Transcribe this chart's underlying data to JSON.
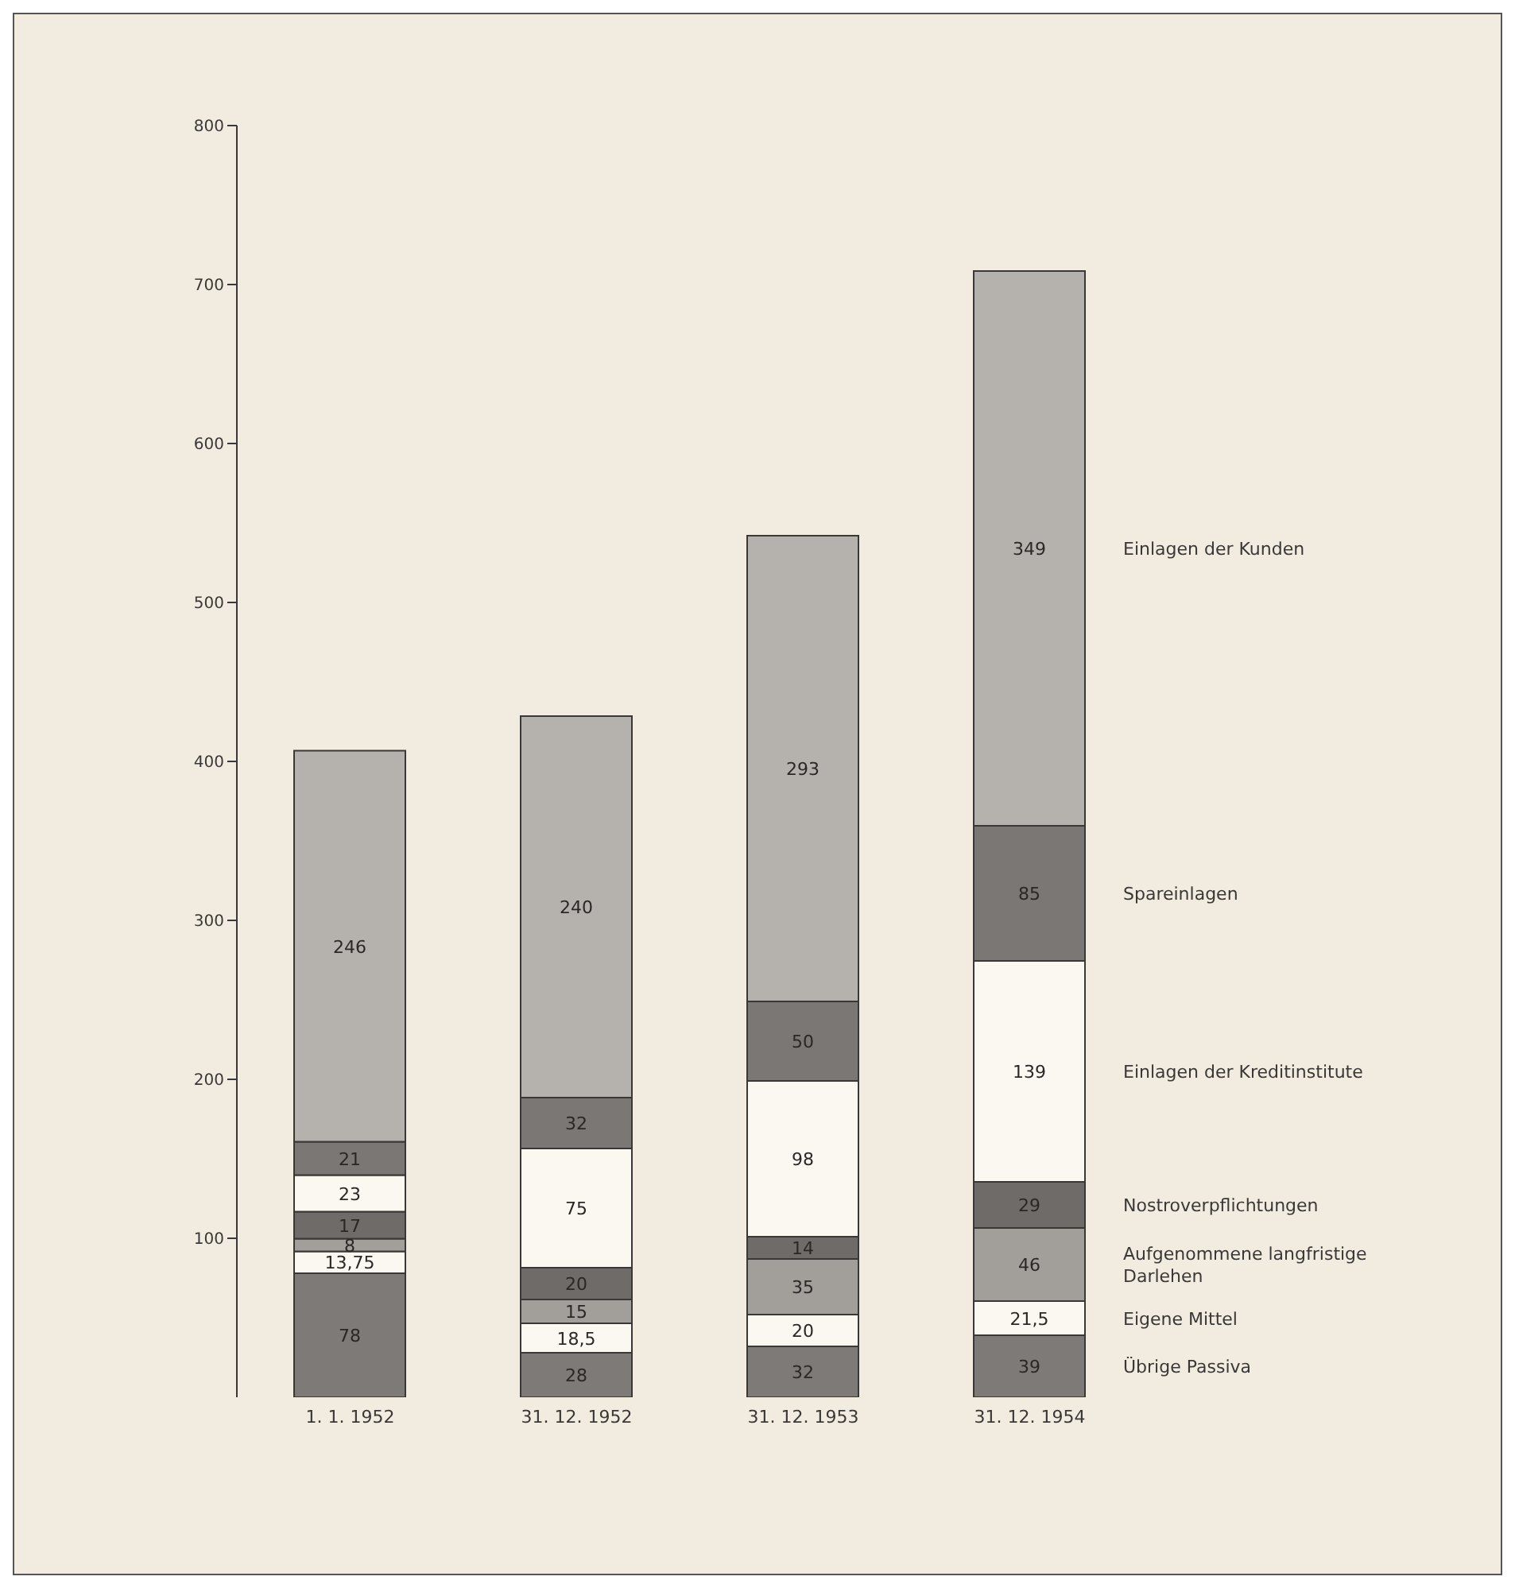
{
  "chart_data": {
    "type": "bar",
    "stacked": true,
    "categories": [
      "1. 1. 1952",
      "31. 12. 1952",
      "31. 12. 1953",
      "31. 12. 1954"
    ],
    "ylim": [
      0,
      800
    ],
    "yticks": [
      100,
      200,
      300,
      400,
      500,
      600,
      700,
      800
    ],
    "grid": false,
    "series": [
      {
        "name": "Übrige Passiva",
        "color": "#7d7a77",
        "values": [
          78,
          28,
          32,
          39
        ],
        "value_labels": [
          "78",
          "28",
          "32",
          "39"
        ]
      },
      {
        "name": "Eigene Mittel",
        "color": "#fbf8f2",
        "values": [
          13.75,
          18.5,
          20,
          21.5
        ],
        "value_labels": [
          "13,75",
          "18,5",
          "20",
          "21,5"
        ]
      },
      {
        "name": "Aufgenommene langfristige Darlehen",
        "color": "#a29f9b",
        "values": [
          8,
          15,
          35,
          46
        ],
        "value_labels": [
          "8",
          "15",
          "35",
          "46"
        ]
      },
      {
        "name": "Nostroverpflichtungen",
        "color": "#6e6b69",
        "values": [
          17,
          20,
          14,
          29
        ],
        "value_labels": [
          "17",
          "20",
          "14",
          "29"
        ]
      },
      {
        "name": "Einlagen der Kreditinstitute",
        "color": "#fbf8f2",
        "values": [
          23,
          75,
          98,
          139
        ],
        "value_labels": [
          "23",
          "75",
          "98",
          "139"
        ]
      },
      {
        "name": "Spareinlagen",
        "color": "#7a7775",
        "values": [
          21,
          32,
          50,
          85
        ],
        "value_labels": [
          "21",
          "32",
          "50",
          "85"
        ]
      },
      {
        "name": "Einlagen der Kunden",
        "color": "#b5b2ad",
        "values": [
          246,
          240,
          293,
          349
        ],
        "value_labels": [
          "246",
          "240",
          "293",
          "349"
        ]
      }
    ]
  }
}
